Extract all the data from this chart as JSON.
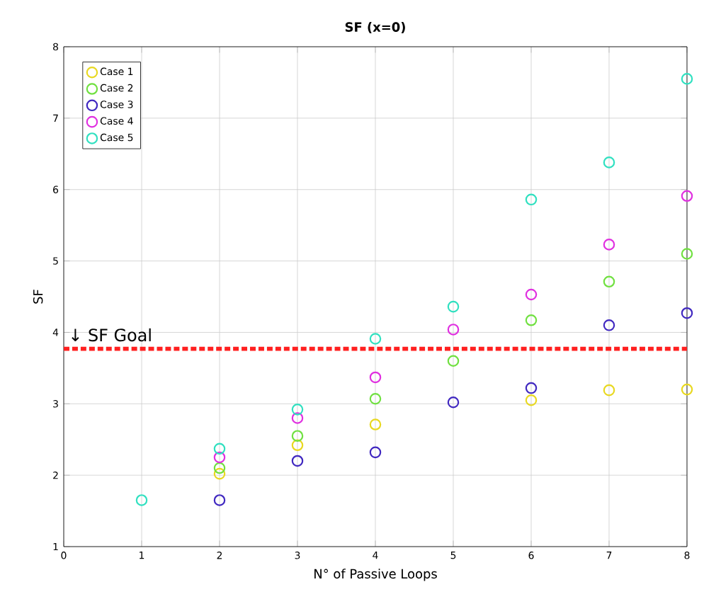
{
  "chart_data": {
    "type": "scatter",
    "title": "SF (x=0)",
    "xlabel": "N° of Passive Loops",
    "ylabel": "SF",
    "x": [
      1,
      2,
      3,
      4,
      5,
      6,
      7,
      8
    ],
    "series": [
      {
        "name": "Case 1",
        "color": "#e8d820",
        "values": [
          null,
          2.02,
          2.42,
          2.71,
          null,
          3.05,
          3.19,
          3.2
        ]
      },
      {
        "name": "Case 2",
        "color": "#70e040",
        "values": [
          null,
          2.1,
          2.55,
          3.07,
          3.6,
          4.17,
          4.71,
          5.1
        ]
      },
      {
        "name": "Case 3",
        "color": "#4028c0",
        "values": [
          null,
          1.65,
          2.2,
          2.32,
          3.02,
          3.22,
          4.1,
          4.27
        ]
      },
      {
        "name": "Case 4",
        "color": "#e030e0",
        "values": [
          null,
          2.25,
          2.8,
          3.37,
          4.04,
          4.53,
          5.23,
          5.91
        ]
      },
      {
        "name": "Case 5",
        "color": "#30e0c0",
        "values": [
          1.65,
          2.37,
          2.92,
          3.91,
          4.36,
          5.86,
          6.38,
          7.55
        ]
      }
    ],
    "xlim": [
      0,
      8
    ],
    "ylim": [
      1,
      8
    ],
    "xticks": [
      0,
      1,
      2,
      3,
      4,
      5,
      6,
      7,
      8
    ],
    "yticks": [
      1,
      2,
      3,
      4,
      5,
      6,
      7,
      8
    ],
    "ref_lines": [
      {
        "axis": "y",
        "value": 3.77,
        "color": "#ff2020",
        "line_style": "dashed",
        "label": "↓ SF Goal"
      }
    ],
    "grid": true,
    "legend": "top left",
    "marker": "circle"
  }
}
